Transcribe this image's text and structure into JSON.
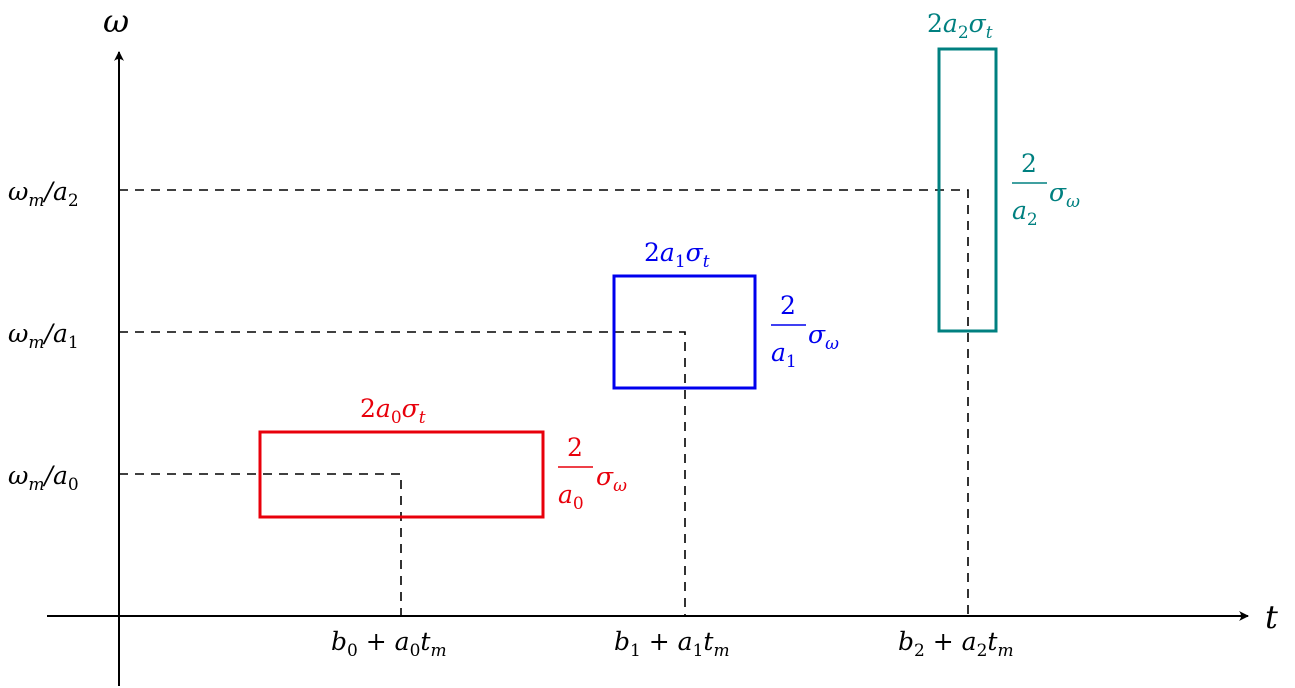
{
  "axes": {
    "y_label": "ω",
    "x_label": "t"
  },
  "colors": {
    "axis": "#000000",
    "box0": "#e8000b",
    "box1": "#0000ee",
    "box2": "#008080"
  },
  "y_ticks": [
    {
      "base": "ω",
      "sub1": "m",
      "slash": "/a",
      "sub2": "0"
    },
    {
      "base": "ω",
      "sub1": "m",
      "slash": "/a",
      "sub2": "1"
    },
    {
      "base": "ω",
      "sub1": "m",
      "slash": "/a",
      "sub2": "2"
    }
  ],
  "x_ticks": [
    {
      "b": "b",
      "bsub": "0",
      "plus": " + a",
      "asub": "0",
      "t": "t",
      "tsub": "m"
    },
    {
      "b": "b",
      "bsub": "1",
      "plus": " + a",
      "asub": "1",
      "t": "t",
      "tsub": "m"
    },
    {
      "b": "b",
      "bsub": "2",
      "plus": " + a",
      "asub": "2",
      "t": "t",
      "tsub": "m"
    }
  ],
  "boxes": [
    {
      "width_label": {
        "two": "2",
        "a": "a",
        "asub": "0",
        "sigma": "σ",
        "ssub": "t"
      },
      "height_label": {
        "num": "2",
        "den": "a",
        "densub": "0",
        "sigma": "σ",
        "ssub": "ω"
      }
    },
    {
      "width_label": {
        "two": "2",
        "a": "a",
        "asub": "1",
        "sigma": "σ",
        "ssub": "t"
      },
      "height_label": {
        "num": "2",
        "den": "a",
        "densub": "1",
        "sigma": "σ",
        "ssub": "ω"
      }
    },
    {
      "width_label": {
        "two": "2",
        "a": "a",
        "asub": "2",
        "sigma": "σ",
        "ssub": "t"
      },
      "height_label": {
        "num": "2",
        "den": "a",
        "densub": "2",
        "sigma": "σ",
        "ssub": "ω"
      }
    }
  ]
}
